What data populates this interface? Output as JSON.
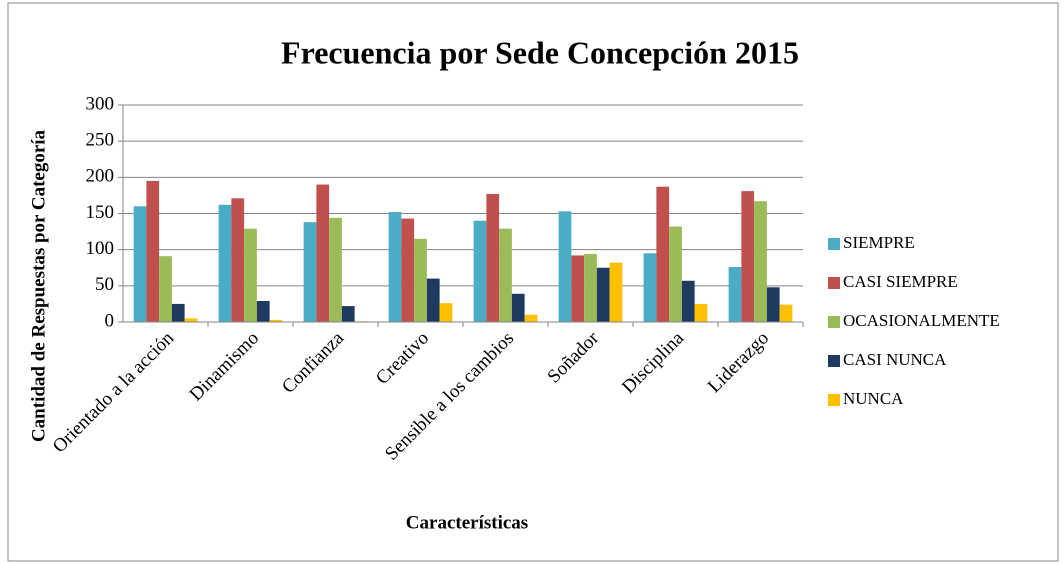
{
  "chart_data": {
    "type": "bar",
    "title": "Frecuencia por Sede Concepción 2015",
    "x_label": "Características",
    "y_label": "Cantidad de Respuestas por Categoría",
    "categories": [
      "Orientado a la acción",
      "Dinamismo",
      "Confianza",
      "Creativo",
      "Sensible a los cambios",
      "Soñador",
      "Disciplina",
      "Liderazgo"
    ],
    "series": [
      {
        "name": "SIEMPRE",
        "color": "#4bacc6",
        "values": [
          160,
          162,
          138,
          152,
          140,
          153,
          95,
          76
        ]
      },
      {
        "name": "CASI SIEMPRE",
        "color": "#c0504d",
        "values": [
          195,
          171,
          190,
          143,
          177,
          92,
          187,
          181
        ]
      },
      {
        "name": "OCASIONALMENTE",
        "color": "#9bbb59",
        "values": [
          91,
          129,
          144,
          115,
          129,
          94,
          132,
          167
        ]
      },
      {
        "name": "CASI NUNCA",
        "color": "#1f3a60",
        "values": [
          25,
          29,
          22,
          60,
          39,
          75,
          57,
          48
        ]
      },
      {
        "name": "NUNCA",
        "color": "#ffc000",
        "values": [
          5,
          3,
          1,
          26,
          10,
          82,
          25,
          24
        ]
      }
    ],
    "ylim": [
      0,
      300
    ],
    "yticks": [
      0,
      50,
      100,
      150,
      200,
      250,
      300
    ],
    "grid": true,
    "legend": "right"
  }
}
